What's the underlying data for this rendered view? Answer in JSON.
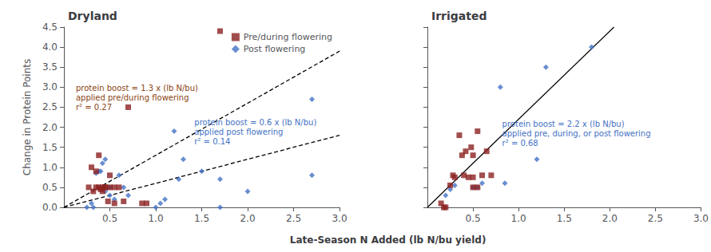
{
  "chart_data": [
    {
      "type": "scatter",
      "title": "Dryland",
      "xlabel": "Late-Season N Added (lb N/bu yield)",
      "ylabel": "Change in Protein Points",
      "xlim": [
        0.0,
        3.0
      ],
      "ylim": [
        0.0,
        4.5
      ],
      "xticks": [
        0.5,
        {
          "value": 1.0,
          "label": "1.0"
        },
        1.5,
        {
          "value": 2.0,
          "label": "2.0"
        },
        2.5,
        {
          "value": 3.0,
          "label": "3.0"
        }
      ],
      "yticks": [
        {
          "value": 0.0,
          "label": "0.0"
        },
        0.5,
        {
          "value": 1.0,
          "label": "1.0"
        },
        1.5,
        {
          "value": 2.0,
          "label": "2.0"
        },
        2.5,
        {
          "value": 3.0,
          "label": "3.0"
        },
        3.5,
        {
          "value": 4.0,
          "label": "4.0"
        },
        4.5
      ],
      "grid": false,
      "legend": "upper right",
      "series": [
        {
          "name": "Pre/during flowering",
          "type": "scatter",
          "color": "#8B2020",
          "marker": "square",
          "x": [
            0.27,
            0.3,
            0.32,
            0.35,
            0.35,
            0.38,
            0.38,
            0.4,
            0.42,
            0.42,
            0.45,
            0.45,
            0.48,
            0.5,
            0.5,
            0.55,
            0.55,
            0.6,
            0.65,
            0.7,
            0.85,
            0.9,
            1.7
          ],
          "values": [
            0.5,
            1.0,
            0.4,
            0.5,
            0.9,
            0.5,
            1.3,
            0.45,
            0.4,
            0.5,
            0.5,
            0.5,
            0.15,
            0.5,
            0.8,
            0.1,
            0.5,
            0.5,
            0.15,
            2.5,
            0.1,
            0.1,
            4.4
          ]
        },
        {
          "name": "Post flowering",
          "type": "scatter",
          "color": "#4472C4",
          "marker": "diamond",
          "x": [
            0.25,
            0.3,
            0.32,
            0.35,
            0.38,
            0.4,
            0.42,
            0.45,
            0.45,
            0.5,
            0.5,
            0.55,
            0.6,
            0.65,
            0.7,
            1.0,
            1.05,
            1.1,
            1.2,
            1.25,
            1.3,
            1.5,
            1.7,
            1.7,
            2.0,
            2.7,
            2.7
          ],
          "values": [
            0.0,
            0.1,
            0.0,
            0.85,
            0.9,
            0.9,
            1.1,
            0.4,
            1.2,
            0.3,
            0.5,
            0.2,
            0.8,
            0.5,
            0.3,
            0.0,
            0.1,
            0.2,
            1.9,
            0.7,
            1.2,
            0.9,
            0.0,
            0.7,
            0.4,
            0.8,
            2.7
          ]
        },
        {
          "type": "line",
          "color": "#000000",
          "line_style": "dashed",
          "x": [
            0.0,
            3.0
          ],
          "values": [
            0.0,
            3.9
          ]
        },
        {
          "type": "line",
          "color": "#000000",
          "line_style": "dashed",
          "x": [
            0.0,
            3.0
          ],
          "values": [
            0.0,
            1.8
          ]
        }
      ],
      "annotations": [
        {
          "text": "protein boost = 1.3 x (lb N/bu)\napplied pre/during flowering\nr² = 0.27",
          "color": "#8B4513"
        },
        {
          "text": "protein boost = 0.6 x (lb N/bu)\napplied post flowering\nr² = 0.14",
          "color": "#4472C4"
        }
      ]
    },
    {
      "type": "scatter",
      "title": "Irrigated",
      "xlim": [
        0.0,
        3.0
      ],
      "ylim": [
        0.0,
        4.5
      ],
      "xticks": [
        0.5,
        {
          "value": 1.0,
          "label": "1.0"
        },
        1.5,
        {
          "value": 2.0,
          "label": "2.0"
        },
        2.5,
        {
          "value": 3.0,
          "label": "3.0"
        }
      ],
      "yticks": [
        0.0,
        0.5,
        1.0,
        1.5,
        2.0,
        2.5,
        3.0,
        3.5,
        4.0,
        4.5
      ],
      "tick_labels": "x",
      "grid": false,
      "series": [
        {
          "name": "Pre/during flowering",
          "type": "scatter",
          "color": "#8B2020",
          "marker": "square",
          "x": [
            0.15,
            0.18,
            0.2,
            0.25,
            0.28,
            0.3,
            0.35,
            0.38,
            0.4,
            0.42,
            0.45,
            0.48,
            0.5,
            0.5,
            0.5,
            0.55,
            0.55,
            0.6,
            0.65,
            0.7
          ],
          "values": [
            0.1,
            0.0,
            0.0,
            0.55,
            0.8,
            0.75,
            1.8,
            1.3,
            0.8,
            1.4,
            0.75,
            1.5,
            0.5,
            0.75,
            1.3,
            0.5,
            1.9,
            0.8,
            1.4,
            0.8
          ]
        },
        {
          "name": "Post flowering",
          "type": "scatter",
          "color": "#4472C4",
          "marker": "diamond",
          "x": [
            0.2,
            0.25,
            0.3,
            0.5,
            0.55,
            0.6,
            0.8,
            0.85,
            1.2,
            1.3,
            1.8
          ],
          "values": [
            0.3,
            0.45,
            0.55,
            0.5,
            0.5,
            0.6,
            3.0,
            0.6,
            1.2,
            3.5,
            4.0
          ]
        },
        {
          "type": "line",
          "color": "#000000",
          "line_style": "solid",
          "x": [
            0.0,
            2.0454545454545454
          ],
          "values": [
            0.0,
            4.5
          ]
        }
      ],
      "annotations": [
        {
          "text": "protein boost = 2.2 x (lb N/bu)\napplied pre, during, or post flowering\nr² = 0.68",
          "color": "#4472C4"
        }
      ]
    }
  ]
}
